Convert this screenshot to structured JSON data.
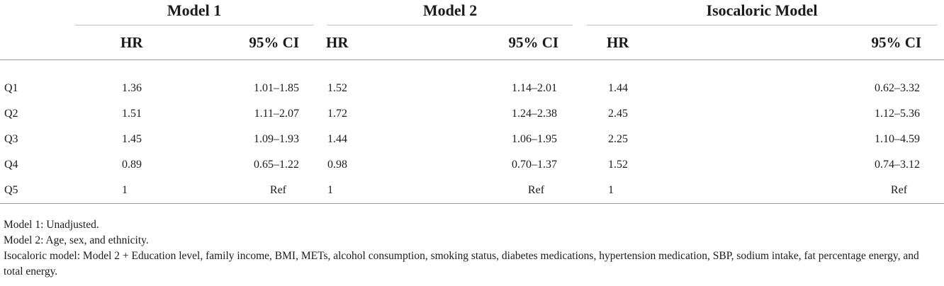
{
  "table": {
    "groups": [
      "Model 1",
      "Model 2",
      "Isocaloric Model"
    ],
    "subheaders": [
      "HR",
      "95% CI",
      "HR",
      "95% CI",
      "HR",
      "95% CI"
    ],
    "rows": [
      {
        "label": "Q1",
        "values": [
          "1.36",
          "1.01–1.85",
          "1.52",
          "1.14–2.01",
          "1.44",
          "0.62–3.32"
        ]
      },
      {
        "label": "Q2",
        "values": [
          "1.51",
          "1.11–2.07",
          "1.72",
          "1.24–2.38",
          "2.45",
          "1.12–5.36"
        ]
      },
      {
        "label": "Q3",
        "values": [
          "1.45",
          "1.09–1.93",
          "1.44",
          "1.06–1.95",
          "2.25",
          "1.10–4.59"
        ]
      },
      {
        "label": "Q4",
        "values": [
          "0.89",
          "0.65–1.22",
          "0.98",
          "0.70–1.37",
          "1.52",
          "0.74–3.12"
        ]
      },
      {
        "label": "Q5",
        "values": [
          "1",
          "Ref",
          "1",
          "Ref",
          "1",
          "Ref"
        ]
      }
    ]
  },
  "footnotes": [
    "Model 1: Unadjusted.",
    "Model 2: Age, sex, and ethnicity.",
    "Isocaloric model: Model 2 + Education level, family income, BMI, METs, alcohol consumption, smoking status, diabetes medications, hypertension medication, SBP, sodium intake, fat percentage energy, and total energy."
  ]
}
